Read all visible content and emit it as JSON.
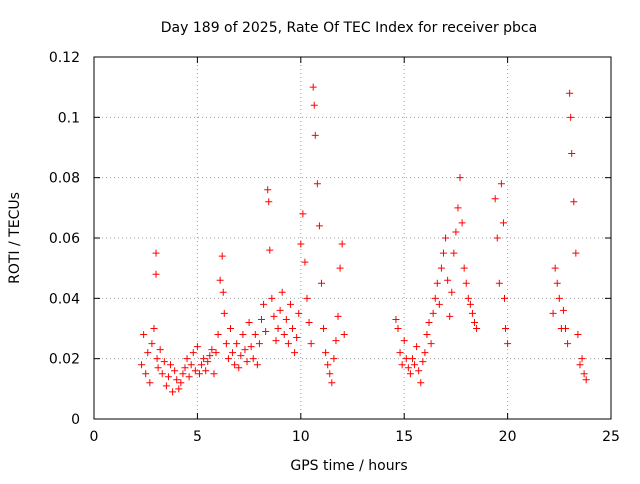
{
  "chart_data": {
    "type": "scatter",
    "title": "Day 189 of 2025, Rate Of TEC Index for receiver pbca",
    "xlabel": "GPS time / hours",
    "ylabel": "ROTI / TECUs",
    "xlim": [
      0,
      25
    ],
    "ylim": [
      0,
      0.12
    ],
    "x_ticks": [
      0,
      5,
      10,
      15,
      20,
      25
    ],
    "x_tick_labels": [
      "0",
      "5",
      "10",
      "15",
      "20",
      "25"
    ],
    "y_ticks": [
      0,
      0.02,
      0.04,
      0.06,
      0.08,
      0.1,
      0.12
    ],
    "y_tick_labels": [
      "0",
      "0.02",
      "0.04",
      "0.06",
      "0.08",
      "0.1",
      "0.12"
    ],
    "grid": true,
    "marker": "+",
    "marker_color": "#ff0000",
    "series": [
      {
        "x": [
          2.3,
          2.4,
          2.5,
          2.6,
          2.7,
          2.8,
          2.9,
          3.0,
          3.0,
          3.05,
          3.1,
          3.2,
          3.3,
          3.4,
          3.5,
          3.6,
          3.7,
          3.8,
          3.9,
          4.0,
          4.1,
          4.2,
          4.3,
          4.4,
          4.5,
          4.6,
          4.7,
          4.8,
          4.9,
          5.0,
          5.1,
          5.2,
          5.3,
          5.4,
          5.5,
          5.6,
          5.7,
          5.8,
          5.9,
          6.0,
          6.1,
          6.2,
          6.25,
          6.3,
          6.4,
          6.5,
          6.6,
          6.7,
          6.8,
          6.9,
          7.0,
          7.1,
          7.2,
          7.3,
          7.4,
          7.5,
          7.6,
          7.7,
          7.8,
          7.9,
          8.0,
          8.1,
          8.2,
          8.3,
          8.4,
          8.45,
          8.5,
          8.6,
          8.7,
          8.8,
          8.9,
          9.0,
          9.1,
          9.2,
          9.3,
          9.4,
          9.5,
          9.6,
          9.7,
          9.8,
          9.9,
          10.0,
          10.1,
          10.2,
          10.3,
          10.4,
          10.5,
          10.6,
          10.65,
          10.7,
          10.8,
          10.9,
          11.0,
          11.1,
          11.2,
          11.3,
          11.4,
          11.5,
          11.6,
          11.7,
          11.8,
          11.9,
          12.0,
          12.1,
          14.6,
          14.7,
          14.8,
          14.9,
          15.0,
          15.1,
          15.2,
          15.3,
          15.4,
          15.5,
          15.6,
          15.7,
          15.8,
          15.9,
          16.0,
          16.1,
          16.2,
          16.3,
          16.4,
          16.5,
          16.6,
          16.7,
          16.8,
          16.9,
          17.0,
          17.1,
          17.2,
          17.3,
          17.4,
          17.5,
          17.6,
          17.7,
          17.8,
          17.9,
          18.0,
          18.1,
          18.2,
          18.3,
          18.4,
          18.5,
          19.4,
          19.5,
          19.6,
          19.7,
          19.8,
          19.85,
          19.9,
          20.0,
          22.2,
          22.3,
          22.4,
          22.5,
          22.6,
          22.7,
          22.8,
          22.9,
          23.0,
          23.05,
          23.1,
          23.2,
          23.3,
          23.4,
          23.5,
          23.6,
          23.7,
          23.8
        ],
        "y": [
          0.018,
          0.028,
          0.015,
          0.022,
          0.012,
          0.025,
          0.03,
          0.055,
          0.048,
          0.02,
          0.017,
          0.023,
          0.015,
          0.019,
          0.011,
          0.014,
          0.018,
          0.009,
          0.016,
          0.013,
          0.01,
          0.012,
          0.015,
          0.017,
          0.02,
          0.014,
          0.018,
          0.022,
          0.016,
          0.024,
          0.015,
          0.018,
          0.02,
          0.016,
          0.019,
          0.021,
          0.023,
          0.015,
          0.022,
          0.028,
          0.046,
          0.054,
          0.042,
          0.035,
          0.025,
          0.02,
          0.03,
          0.022,
          0.018,
          0.025,
          0.017,
          0.021,
          0.028,
          0.023,
          0.019,
          0.032,
          0.024,
          0.02,
          0.028,
          0.018,
          0.025,
          0.033,
          0.038,
          0.029,
          0.076,
          0.072,
          0.056,
          0.04,
          0.034,
          0.026,
          0.03,
          0.036,
          0.042,
          0.028,
          0.033,
          0.025,
          0.038,
          0.03,
          0.022,
          0.027,
          0.035,
          0.058,
          0.068,
          0.052,
          0.04,
          0.032,
          0.025,
          0.11,
          0.104,
          0.094,
          0.078,
          0.064,
          0.045,
          0.03,
          0.022,
          0.018,
          0.015,
          0.012,
          0.02,
          0.026,
          0.034,
          0.05,
          0.058,
          0.028,
          0.033,
          0.03,
          0.022,
          0.018,
          0.026,
          0.02,
          0.017,
          0.015,
          0.02,
          0.018,
          0.024,
          0.016,
          0.012,
          0.019,
          0.022,
          0.028,
          0.032,
          0.025,
          0.035,
          0.04,
          0.045,
          0.038,
          0.05,
          0.055,
          0.06,
          0.046,
          0.034,
          0.042,
          0.055,
          0.062,
          0.07,
          0.08,
          0.065,
          0.05,
          0.045,
          0.04,
          0.038,
          0.035,
          0.032,
          0.03,
          0.073,
          0.06,
          0.045,
          0.078,
          0.065,
          0.04,
          0.03,
          0.025,
          0.035,
          0.05,
          0.045,
          0.04,
          0.03,
          0.036,
          0.03,
          0.025,
          0.108,
          0.1,
          0.088,
          0.072,
          0.055,
          0.028,
          0.018,
          0.02,
          0.015,
          0.013
        ]
      }
    ]
  }
}
